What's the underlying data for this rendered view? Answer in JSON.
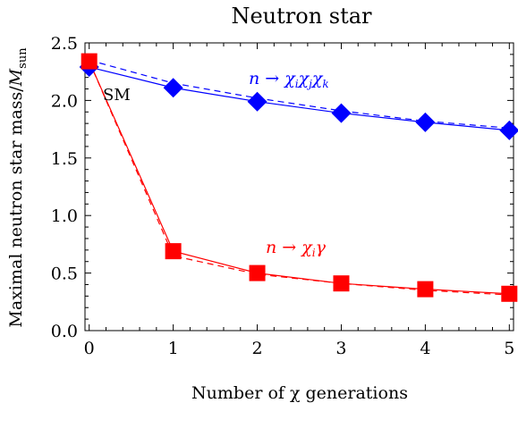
{
  "chart_data": {
    "type": "line",
    "title": "Neutron star",
    "xlabel": "Number of χ generations",
    "ylabel": "Maximal neutron star mass/M_sun",
    "ylabel_main": "Maximal neutron star mass/",
    "ylabel_M": "M",
    "ylabel_sub": "sun",
    "xlim": [
      -0.05,
      5.05
    ],
    "ylim": [
      0.0,
      2.5
    ],
    "xticks": [
      0,
      1,
      2,
      3,
      4,
      5
    ],
    "xtick_labels": [
      "0",
      "1",
      "2",
      "3",
      "4",
      "5"
    ],
    "yticks": [
      0.0,
      0.5,
      1.0,
      1.5,
      2.0,
      2.5
    ],
    "ytick_labels": [
      "0.0",
      "0.5",
      "1.0",
      "1.5",
      "2.0",
      "2.5"
    ],
    "grid": false,
    "series": [
      {
        "name": "n → χiχjχk",
        "color": "#0000ff",
        "marker": "diamond",
        "x": [
          0,
          1,
          2,
          3,
          4,
          5
        ],
        "values": [
          2.29,
          2.11,
          1.99,
          1.89,
          1.81,
          1.74
        ],
        "dashed_values": [
          2.35,
          2.15,
          2.02,
          1.91,
          1.82,
          1.76
        ]
      },
      {
        "name": "n → χiγ",
        "color": "#ff0000",
        "marker": "square",
        "x": [
          0,
          1,
          2,
          3,
          4,
          5
        ],
        "values": [
          2.34,
          0.69,
          0.5,
          0.41,
          0.36,
          0.32
        ],
        "dashed_values": [
          2.34,
          0.65,
          0.49,
          0.41,
          0.35,
          0.31
        ]
      }
    ],
    "annotations": [
      {
        "text": "SM"
      },
      {
        "text": "n → χiχjχk",
        "color": "#0000ff"
      },
      {
        "text": "n → χiγ",
        "color": "#ff0000"
      }
    ]
  }
}
